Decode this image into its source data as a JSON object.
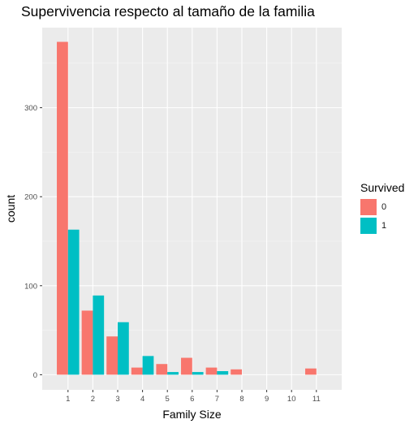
{
  "chart_data": {
    "type": "bar",
    "title": "Supervivencia respecto al tamaño de la familia",
    "xlabel": "Family Size",
    "ylabel": "count",
    "categories": [
      "1",
      "2",
      "3",
      "4",
      "5",
      "6",
      "7",
      "8",
      "9",
      "10",
      "11"
    ],
    "yticks": [
      0,
      100,
      200,
      300
    ],
    "ylim": [
      -17,
      390
    ],
    "grid": true,
    "legend": {
      "title": "Survived",
      "placement": "right"
    },
    "series": [
      {
        "name": "0",
        "color": "#F8766D",
        "values": [
          374,
          72,
          43,
          8,
          12,
          19,
          8,
          6,
          0,
          0,
          7
        ]
      },
      {
        "name": "1",
        "color": "#00BFC4",
        "values": [
          163,
          89,
          59,
          21,
          3,
          3,
          4,
          0,
          0,
          0,
          0
        ]
      }
    ]
  }
}
